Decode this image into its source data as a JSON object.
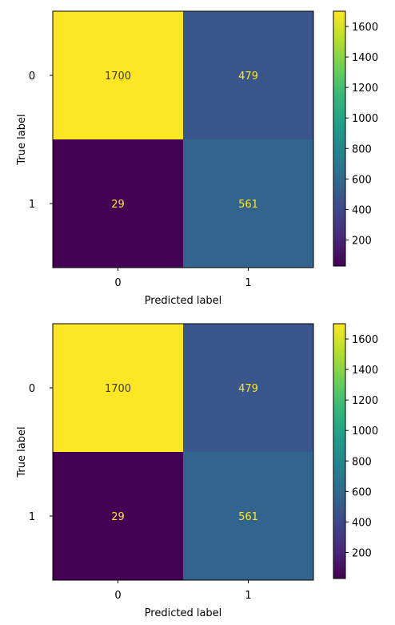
{
  "colormap": {
    "name": "viridis",
    "stops": [
      "#440154",
      "#482878",
      "#3e4989",
      "#31688e",
      "#26828e",
      "#1f9e89",
      "#35b779",
      "#6ece58",
      "#b5de2b",
      "#fde725"
    ]
  },
  "chart_data": [
    {
      "type": "heatmap",
      "title": "",
      "xlabel": "Predicted label",
      "ylabel": "True label",
      "x_categories": [
        "0",
        "1"
      ],
      "y_categories": [
        "0",
        "1"
      ],
      "values": [
        [
          1700,
          479
        ],
        [
          29,
          561
        ]
      ],
      "cell_labels": [
        [
          "1700",
          "479"
        ],
        [
          "29",
          "561"
        ]
      ],
      "colorbar": {
        "ticks": [
          200,
          400,
          600,
          800,
          1000,
          1200,
          1400,
          1600
        ],
        "vmin": 29,
        "vmax": 1700
      },
      "grid": false
    },
    {
      "type": "heatmap",
      "title": "",
      "xlabel": "Predicted label",
      "ylabel": "True label",
      "x_categories": [
        "0",
        "1"
      ],
      "y_categories": [
        "0",
        "1"
      ],
      "values": [
        [
          1700,
          479
        ],
        [
          29,
          561
        ]
      ],
      "cell_labels": [
        [
          "1700",
          "479"
        ],
        [
          "29",
          "561"
        ]
      ],
      "colorbar": {
        "ticks": [
          200,
          400,
          600,
          800,
          1000,
          1200,
          1400,
          1600
        ],
        "vmin": 29,
        "vmax": 1700
      },
      "grid": false
    }
  ]
}
